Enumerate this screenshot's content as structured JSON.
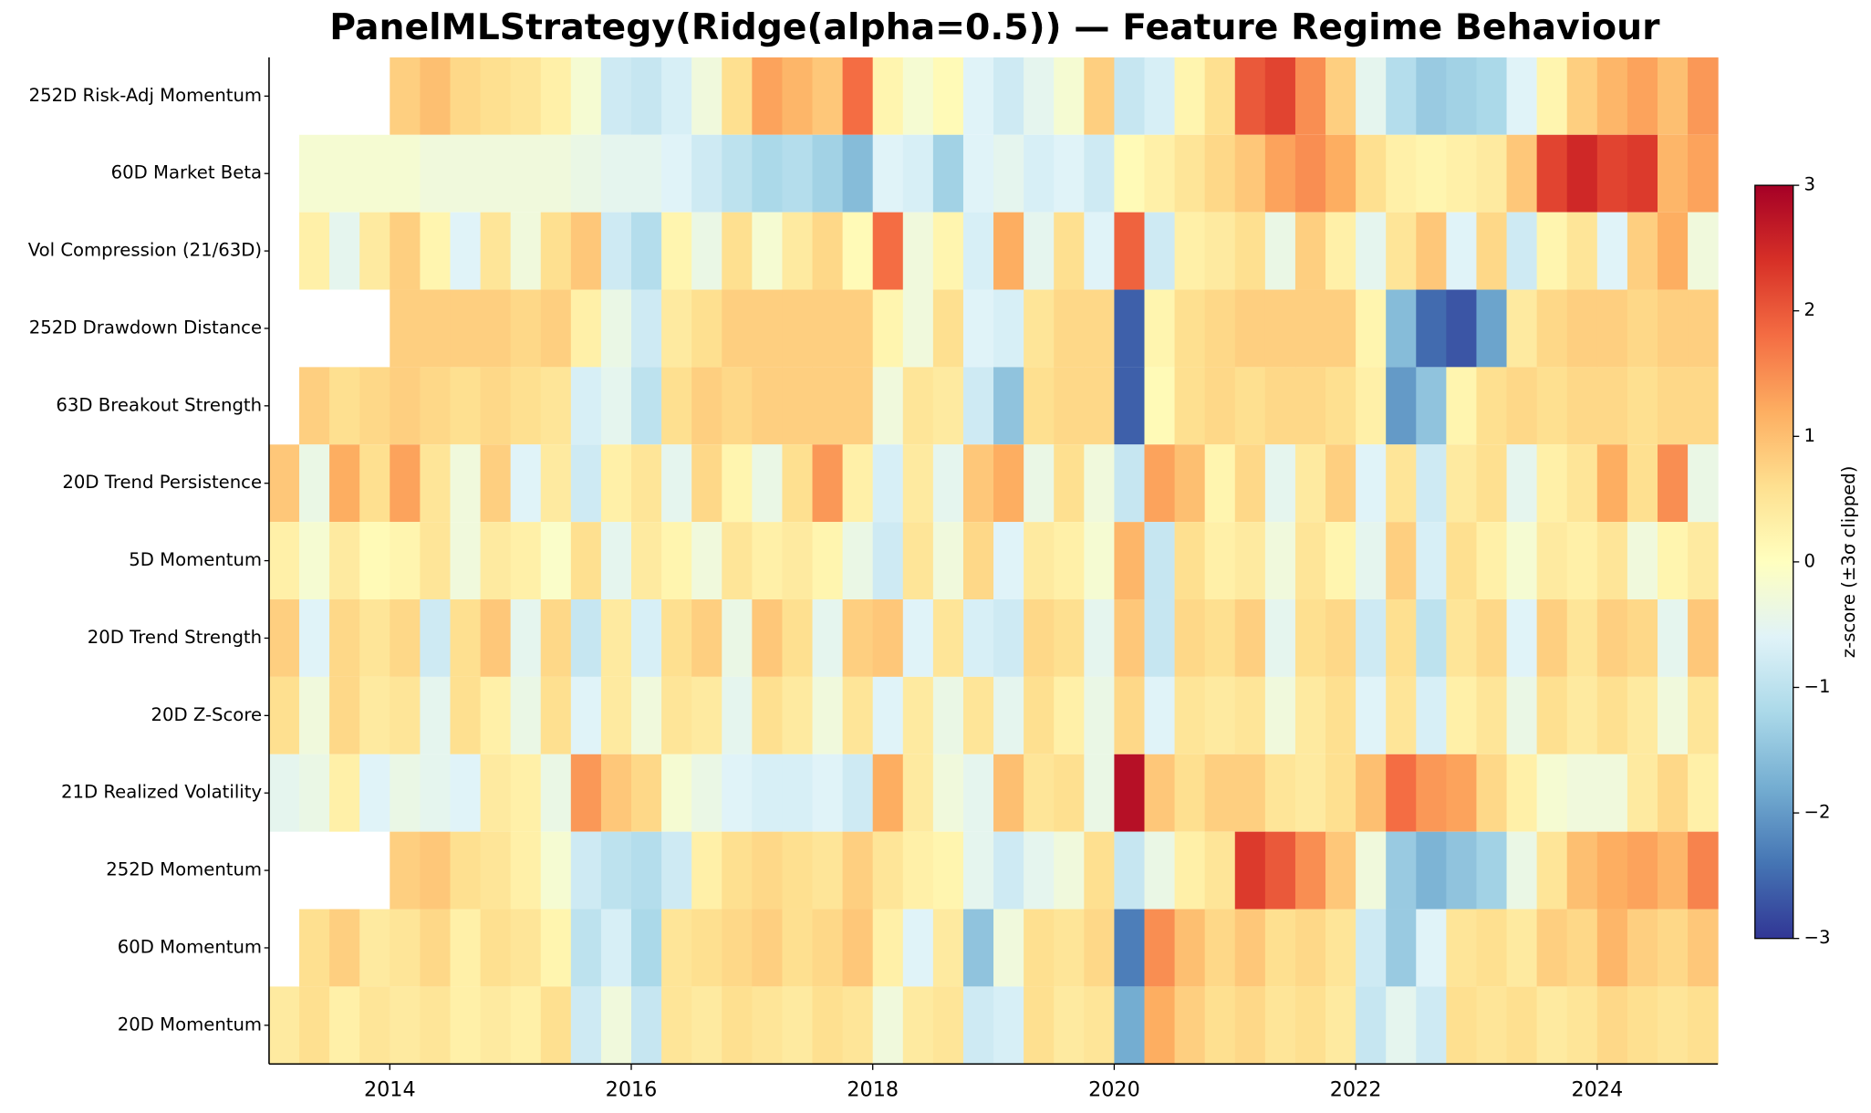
{
  "chart_data": {
    "type": "heatmap",
    "title": "PanelMLStrategy(Ridge(alpha=0.5)) — Feature Regime Behaviour",
    "x": [
      2013,
      2013.25,
      2013.5,
      2013.75,
      2014,
      2014.25,
      2014.5,
      2014.75,
      2015,
      2015.25,
      2015.5,
      2015.75,
      2016,
      2016.25,
      2016.5,
      2016.75,
      2017,
      2017.25,
      2017.5,
      2017.75,
      2018,
      2018.25,
      2018.5,
      2018.75,
      2019,
      2019.25,
      2019.5,
      2019.75,
      2020,
      2020.25,
      2020.5,
      2020.75,
      2021,
      2021.25,
      2021.5,
      2021.75,
      2022,
      2022.25,
      2022.5,
      2022.75,
      2023,
      2023.25,
      2023.5,
      2023.75,
      2024,
      2024.25,
      2024.5,
      2024.75
    ],
    "xlim": [
      2013,
      2025
    ],
    "xticks": [
      2014,
      2016,
      2018,
      2020,
      2022,
      2024
    ],
    "series": [
      {
        "name": "252D Risk-Adj Momentum",
        "values": [
          null,
          null,
          null,
          null,
          0.8,
          1.0,
          0.7,
          0.6,
          0.5,
          0.3,
          -0.2,
          -0.8,
          -0.9,
          -0.7,
          -0.3,
          0.6,
          1.3,
          1.1,
          0.9,
          1.8,
          0.2,
          -0.2,
          0.1,
          -0.6,
          -0.8,
          -0.5,
          -0.2,
          0.8,
          -0.9,
          -0.7,
          0.2,
          0.6,
          2.0,
          2.2,
          1.5,
          0.8,
          -0.5,
          -1.1,
          -1.4,
          -1.3,
          -1.2,
          -0.6,
          0.2,
          0.8,
          1.1,
          1.3,
          1.0,
          1.4
        ]
      },
      {
        "name": "60D Market Beta",
        "values": [
          null,
          -0.2,
          -0.2,
          -0.2,
          -0.2,
          -0.3,
          -0.3,
          -0.3,
          -0.3,
          -0.3,
          -0.4,
          -0.5,
          -0.5,
          -0.6,
          -0.8,
          -1.0,
          -1.2,
          -1.1,
          -1.3,
          -1.6,
          -0.6,
          -0.7,
          -1.3,
          -0.6,
          -0.5,
          -0.7,
          -0.6,
          -0.8,
          0.1,
          0.3,
          0.5,
          0.7,
          0.9,
          1.3,
          1.5,
          1.2,
          0.6,
          0.3,
          0.2,
          0.3,
          0.4,
          0.9,
          2.2,
          2.5,
          2.2,
          2.3,
          1.1,
          1.3
        ]
      },
      {
        "name": "Vol Compression (21/63D)",
        "values": [
          null,
          0.3,
          -0.5,
          0.4,
          0.8,
          0.2,
          -0.6,
          0.5,
          -0.3,
          0.6,
          0.9,
          -0.8,
          -1.1,
          0.2,
          -0.4,
          0.6,
          -0.2,
          0.4,
          0.7,
          0.1,
          1.8,
          -0.3,
          0.2,
          -0.7,
          1.2,
          -0.5,
          0.6,
          -0.6,
          1.9,
          -0.8,
          0.3,
          0.4,
          0.6,
          -0.4,
          0.8,
          0.3,
          -0.5,
          0.5,
          0.9,
          -0.6,
          0.7,
          -0.8,
          0.2,
          0.5,
          -0.6,
          0.8,
          1.2,
          -0.3
        ]
      },
      {
        "name": "252D Drawdown Distance",
        "values": [
          null,
          null,
          null,
          null,
          0.8,
          0.8,
          0.8,
          0.8,
          0.7,
          0.8,
          0.3,
          -0.4,
          -0.8,
          0.4,
          0.6,
          0.8,
          0.8,
          0.8,
          0.8,
          0.8,
          0.2,
          -0.3,
          0.6,
          -0.6,
          -0.7,
          0.5,
          0.7,
          0.7,
          -2.6,
          0.2,
          0.6,
          0.7,
          0.8,
          0.8,
          0.8,
          0.8,
          0.2,
          -1.6,
          -2.5,
          -2.7,
          -1.9,
          0.4,
          0.7,
          0.8,
          0.8,
          0.7,
          0.8,
          0.8
        ]
      },
      {
        "name": "63D Breakout Strength",
        "values": [
          null,
          0.8,
          0.6,
          0.7,
          0.8,
          0.7,
          0.6,
          0.7,
          0.6,
          0.5,
          -0.7,
          -0.5,
          -1.0,
          0.6,
          0.8,
          0.7,
          0.8,
          0.8,
          0.8,
          0.8,
          -0.3,
          0.5,
          0.4,
          -0.8,
          -1.5,
          0.6,
          0.7,
          0.7,
          -2.6,
          0.1,
          0.6,
          0.7,
          0.6,
          0.7,
          0.7,
          0.6,
          0.3,
          -2.0,
          -1.5,
          0.2,
          0.6,
          0.7,
          0.6,
          0.7,
          0.7,
          0.6,
          0.7,
          0.7
        ]
      },
      {
        "name": "20D Trend Persistence",
        "values": [
          0.9,
          -0.4,
          1.2,
          0.6,
          1.3,
          0.5,
          -0.3,
          0.8,
          -0.6,
          0.4,
          -0.8,
          0.3,
          0.5,
          -0.5,
          0.7,
          0.2,
          -0.4,
          0.6,
          1.4,
          0.3,
          -0.7,
          0.4,
          -0.5,
          0.9,
          1.2,
          -0.4,
          0.6,
          -0.3,
          -0.9,
          1.3,
          1.0,
          0.2,
          0.7,
          -0.5,
          0.4,
          0.8,
          -0.6,
          0.5,
          -0.8,
          0.4,
          0.6,
          -0.5,
          0.3,
          0.5,
          1.2,
          0.6,
          1.5,
          -0.4
        ]
      },
      {
        "name": "5D Momentum",
        "values": [
          0.3,
          -0.2,
          0.4,
          0.1,
          0.2,
          0.5,
          -0.3,
          0.4,
          0.3,
          -0.1,
          0.6,
          -0.5,
          0.4,
          0.2,
          -0.3,
          0.5,
          0.3,
          0.4,
          0.2,
          -0.4,
          -0.8,
          0.5,
          -0.3,
          0.7,
          -0.6,
          0.4,
          0.3,
          -0.2,
          1.1,
          -0.9,
          0.6,
          0.3,
          0.4,
          -0.3,
          0.5,
          0.2,
          -0.5,
          0.8,
          -0.7,
          0.6,
          0.3,
          -0.2,
          0.4,
          0.3,
          0.5,
          -0.3,
          0.2,
          0.4
        ]
      },
      {
        "name": "20D Trend Strength",
        "values": [
          0.8,
          -0.6,
          0.7,
          0.5,
          0.7,
          -0.8,
          0.6,
          0.9,
          -0.5,
          0.7,
          -0.9,
          0.4,
          -0.7,
          0.6,
          0.8,
          -0.4,
          0.9,
          0.6,
          -0.5,
          0.8,
          0.9,
          -0.6,
          0.5,
          -0.7,
          -0.8,
          0.7,
          0.6,
          -0.5,
          0.9,
          -0.9,
          0.7,
          0.6,
          0.8,
          -0.5,
          0.6,
          0.7,
          -0.8,
          0.6,
          -1.0,
          0.5,
          0.7,
          -0.6,
          0.8,
          0.5,
          0.8,
          0.7,
          -0.5,
          0.9
        ]
      },
      {
        "name": "20D Z-Score",
        "values": [
          0.6,
          -0.3,
          0.7,
          0.4,
          0.5,
          -0.5,
          0.6,
          0.3,
          -0.4,
          0.6,
          -0.6,
          0.4,
          -0.3,
          0.5,
          0.4,
          -0.5,
          0.6,
          0.4,
          -0.3,
          0.5,
          -0.6,
          0.4,
          -0.4,
          0.5,
          -0.5,
          0.6,
          0.3,
          -0.4,
          0.7,
          -0.6,
          0.5,
          0.4,
          0.5,
          -0.3,
          0.4,
          0.6,
          -0.6,
          0.5,
          -0.7,
          0.3,
          0.5,
          -0.4,
          0.6,
          0.4,
          0.6,
          0.4,
          -0.3,
          0.5
        ]
      },
      {
        "name": "21D Realized Volatility",
        "values": [
          -0.5,
          -0.4,
          0.3,
          -0.6,
          -0.4,
          -0.5,
          -0.6,
          0.4,
          0.3,
          -0.4,
          1.4,
          0.9,
          0.7,
          -0.2,
          -0.4,
          -0.6,
          -0.7,
          -0.7,
          -0.6,
          -0.8,
          1.2,
          0.4,
          -0.3,
          -0.5,
          1.0,
          0.5,
          0.6,
          -0.4,
          2.8,
          0.9,
          0.6,
          0.8,
          0.8,
          0.5,
          0.4,
          0.6,
          1.0,
          1.8,
          1.4,
          1.3,
          0.7,
          0.3,
          -0.2,
          -0.3,
          -0.3,
          0.4,
          0.7,
          0.3
        ]
      },
      {
        "name": "252D Momentum",
        "values": [
          null,
          null,
          null,
          null,
          0.8,
          0.9,
          0.6,
          0.5,
          0.3,
          -0.2,
          -0.8,
          -1.0,
          -1.1,
          -0.8,
          0.3,
          0.6,
          0.7,
          0.6,
          0.5,
          0.8,
          0.5,
          0.3,
          0.2,
          -0.5,
          -0.8,
          -0.5,
          -0.3,
          0.6,
          -0.9,
          -0.4,
          0.3,
          0.5,
          2.3,
          2.0,
          1.5,
          0.9,
          -0.3,
          -1.4,
          -1.7,
          -1.5,
          -1.3,
          -0.4,
          0.5,
          1.0,
          1.2,
          1.3,
          1.1,
          1.6
        ]
      },
      {
        "name": "60D Momentum",
        "values": [
          null,
          0.6,
          0.8,
          0.4,
          0.5,
          0.7,
          0.3,
          0.6,
          0.5,
          0.2,
          -1.0,
          -0.7,
          -1.2,
          0.5,
          0.6,
          0.7,
          0.8,
          0.6,
          0.7,
          0.9,
          0.3,
          -0.6,
          0.4,
          -1.5,
          -0.3,
          0.6,
          0.5,
          0.7,
          -2.3,
          1.5,
          1.0,
          0.7,
          0.9,
          0.6,
          0.7,
          0.5,
          -0.8,
          -1.4,
          -0.6,
          0.5,
          0.6,
          0.4,
          0.8,
          0.7,
          1.1,
          0.8,
          0.7,
          0.9
        ]
      },
      {
        "name": "20D Momentum",
        "values": [
          0.4,
          0.6,
          0.3,
          0.5,
          0.4,
          0.5,
          0.3,
          0.4,
          0.3,
          0.6,
          -0.8,
          -0.3,
          -0.9,
          0.5,
          0.4,
          0.6,
          0.5,
          0.4,
          0.6,
          0.5,
          -0.3,
          0.4,
          0.5,
          -0.8,
          -0.7,
          0.6,
          0.4,
          0.5,
          -1.8,
          1.2,
          0.8,
          0.6,
          0.7,
          0.5,
          0.6,
          0.4,
          -0.9,
          -0.5,
          -0.8,
          0.6,
          0.5,
          0.6,
          0.4,
          0.5,
          0.7,
          0.6,
          0.5,
          0.6
        ]
      }
    ],
    "colormap": [
      "#313695",
      "#4575b4",
      "#74add1",
      "#abd9e9",
      "#e0f3f8",
      "#ffffbf",
      "#fee090",
      "#fdae61",
      "#f46d43",
      "#d73027",
      "#a50026"
    ],
    "colorbar": {
      "label": "z-score (±3σ clipped)",
      "lim": [
        -3,
        3
      ],
      "ticks": [
        {
          "value": -3,
          "label": "−3"
        },
        {
          "value": -2,
          "label": "−2"
        },
        {
          "value": -1,
          "label": "−1"
        },
        0,
        1,
        2,
        3
      ]
    }
  }
}
